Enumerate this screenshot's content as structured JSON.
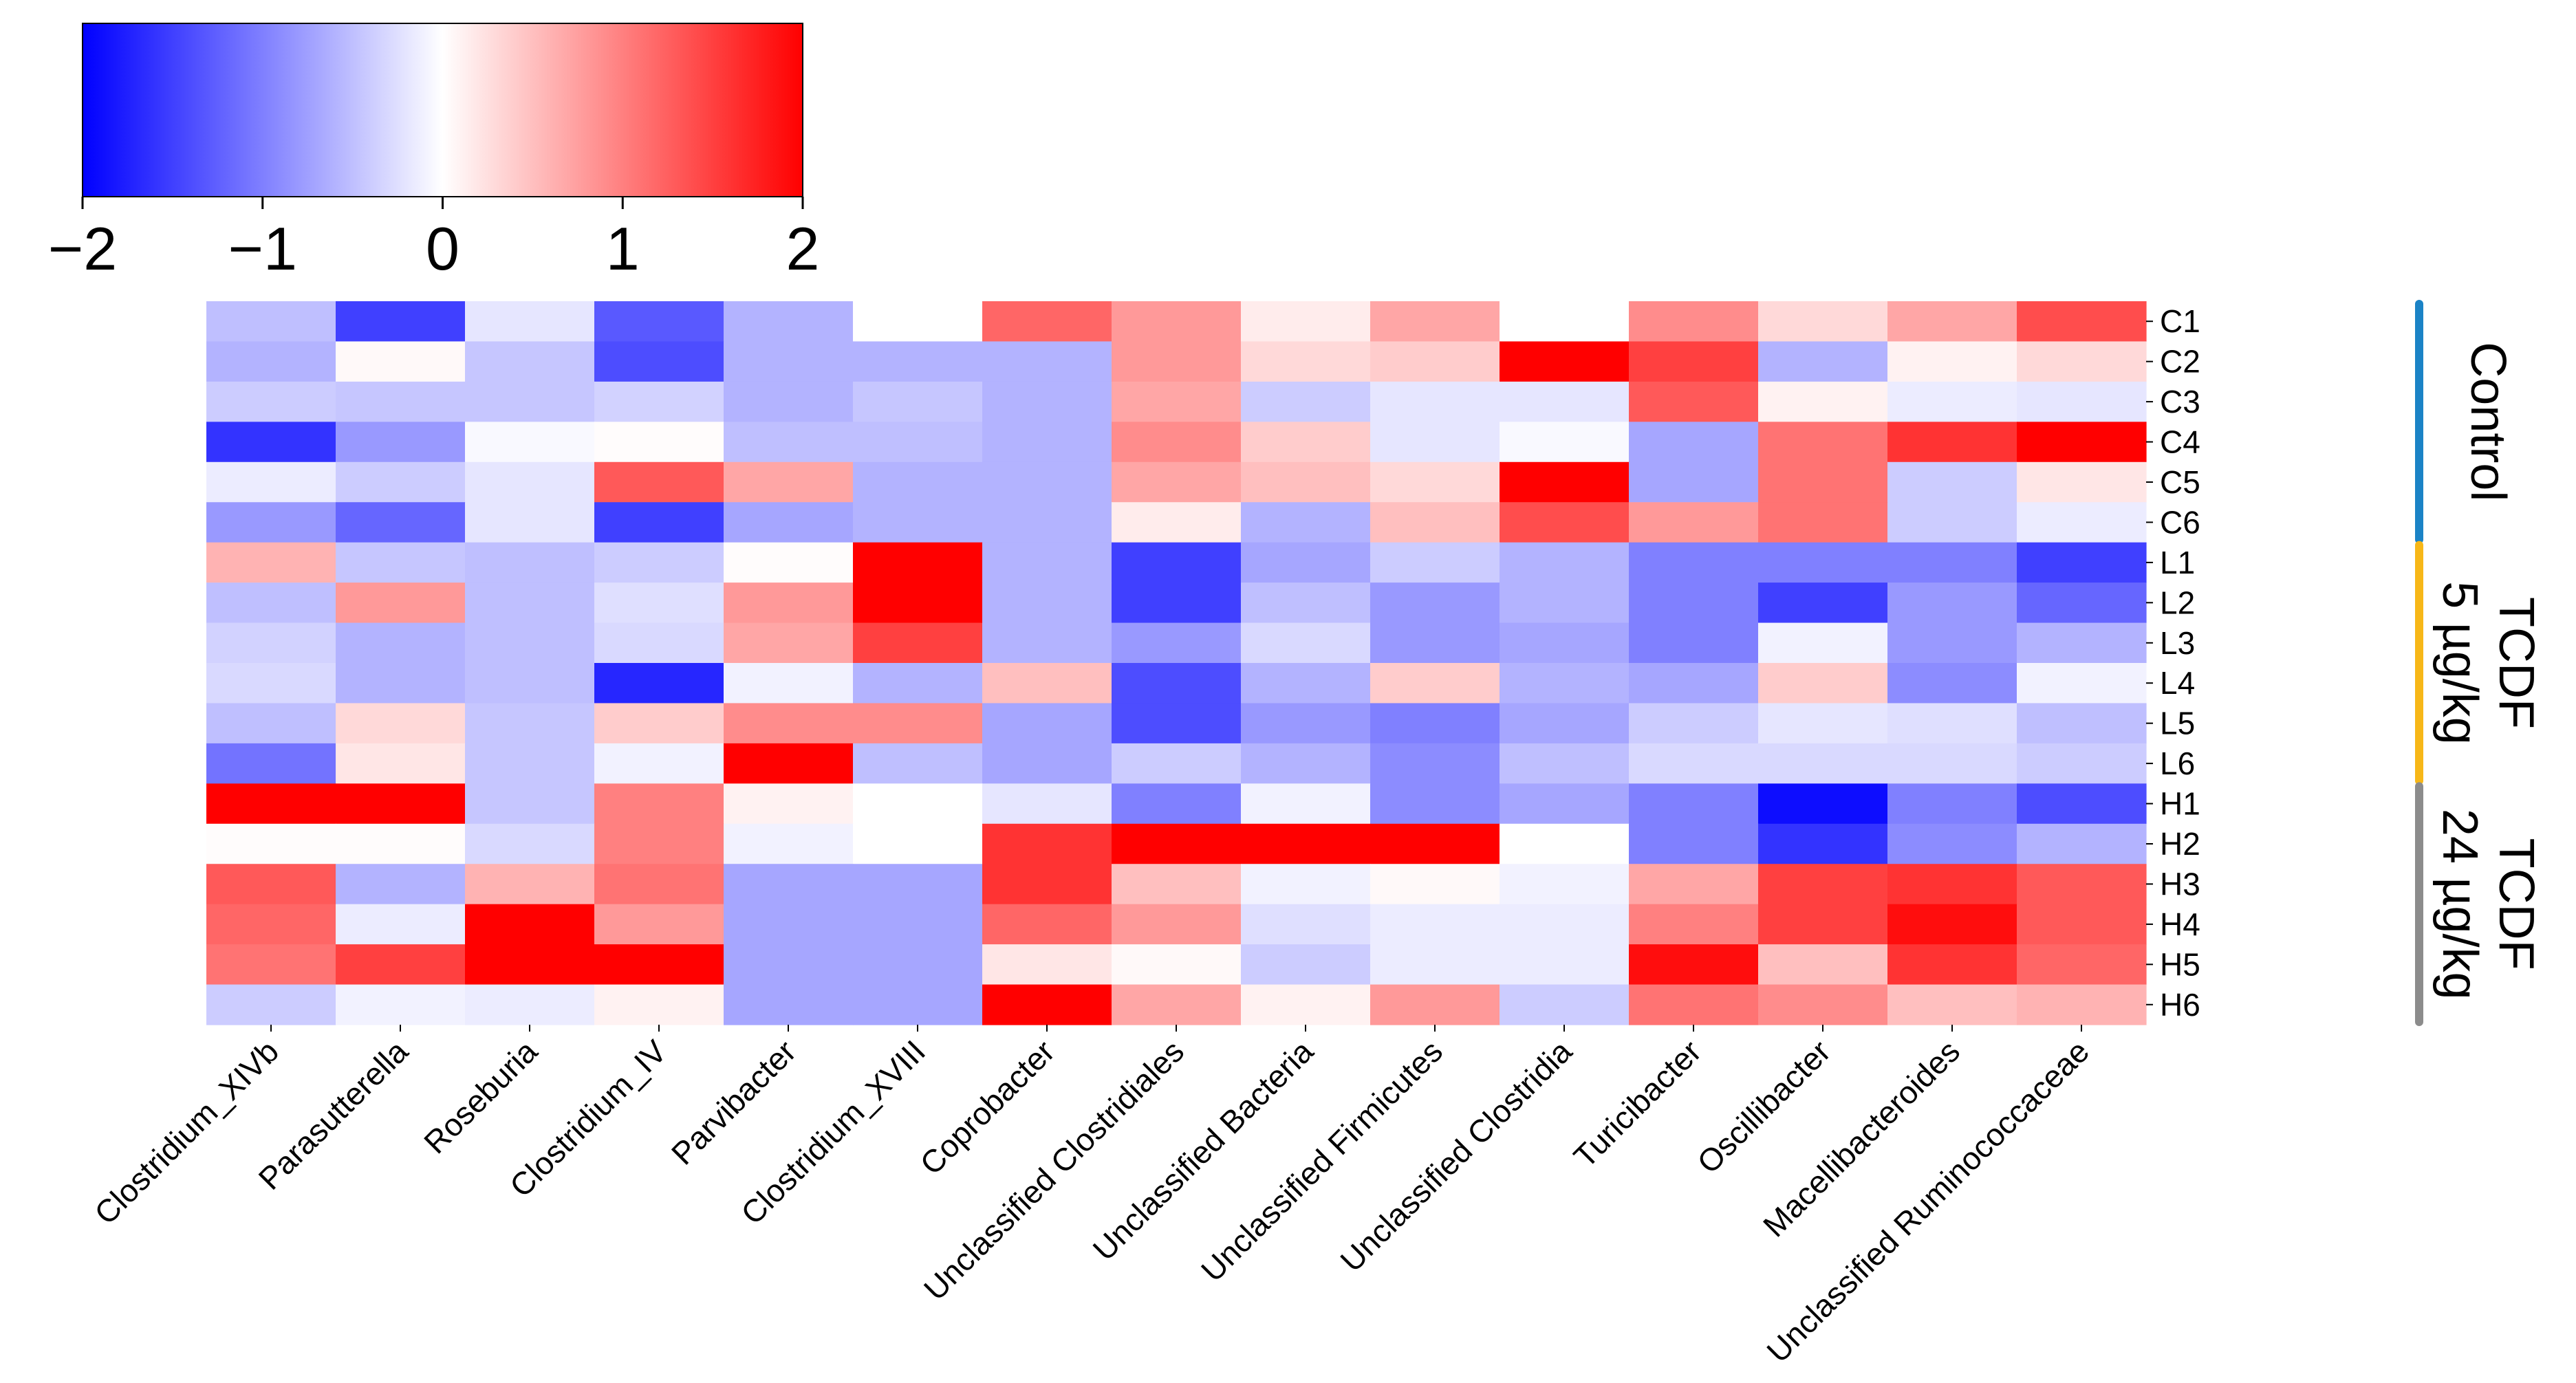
{
  "chart_data": {
    "type": "heatmap",
    "title": "",
    "xlabel": "",
    "ylabel": "",
    "columns": [
      "Clostridium_XIVb",
      "Parasutterella",
      "Roseburia",
      "Clostridium_IV",
      "Parvibacter",
      "Clostridium_XVIII",
      "Coprobacter",
      "Unclassified Clostridiales",
      "Unclassified Bacteria",
      "Unclassified Firmicutes",
      "Unclassified Clostridia",
      "Turicibacter",
      "Oscillibacter",
      "Macellibacteroides",
      "Unclassified Ruminococcaceae"
    ],
    "rows": [
      "C1",
      "C2",
      "C3",
      "C4",
      "C5",
      "C6",
      "L1",
      "L2",
      "L3",
      "L4",
      "L5",
      "L6",
      "H1",
      "H2",
      "H3",
      "H4",
      "H5",
      "H6"
    ],
    "values": [
      [
        -0.5,
        -1.5,
        -0.2,
        -1.3,
        -0.6,
        0.0,
        1.2,
        0.8,
        0.15,
        0.7,
        0.0,
        0.9,
        0.3,
        0.7,
        1.4
      ],
      [
        -0.6,
        0.05,
        -0.45,
        -1.4,
        -0.6,
        -0.6,
        -0.6,
        0.8,
        0.3,
        0.4,
        2.0,
        1.5,
        -0.6,
        0.1,
        0.3
      ],
      [
        -0.4,
        -0.45,
        -0.45,
        -0.35,
        -0.6,
        -0.45,
        -0.6,
        0.7,
        -0.4,
        -0.2,
        -0.2,
        1.3,
        0.1,
        -0.15,
        -0.2
      ],
      [
        -1.6,
        -0.8,
        -0.05,
        0.02,
        -0.5,
        -0.5,
        -0.6,
        0.9,
        0.4,
        -0.2,
        -0.05,
        -0.7,
        1.1,
        1.6,
        2.0
      ],
      [
        -0.15,
        -0.4,
        -0.2,
        1.3,
        0.7,
        -0.6,
        -0.6,
        0.7,
        0.5,
        0.3,
        2.0,
        -0.7,
        1.1,
        -0.4,
        0.2
      ],
      [
        -0.8,
        -1.2,
        -0.2,
        -1.5,
        -0.7,
        -0.6,
        -0.6,
        0.15,
        -0.6,
        0.5,
        1.4,
        0.8,
        1.1,
        -0.4,
        -0.15
      ],
      [
        0.6,
        -0.45,
        -0.5,
        -0.4,
        0.02,
        2.0,
        -0.6,
        -1.5,
        -0.7,
        -0.4,
        -0.6,
        -1.0,
        -1.0,
        -1.0,
        -1.5
      ],
      [
        -0.5,
        0.8,
        -0.5,
        -0.25,
        0.8,
        2.0,
        -0.6,
        -1.5,
        -0.5,
        -0.8,
        -0.6,
        -1.0,
        -1.5,
        -0.8,
        -1.2
      ],
      [
        -0.35,
        -0.6,
        -0.5,
        -0.3,
        0.7,
        1.5,
        -0.6,
        -0.8,
        -0.3,
        -0.8,
        -0.7,
        -1.0,
        -0.1,
        -0.8,
        -0.6
      ],
      [
        -0.3,
        -0.6,
        -0.5,
        -1.7,
        -0.1,
        -0.6,
        0.5,
        -1.4,
        -0.6,
        0.4,
        -0.6,
        -0.7,
        0.4,
        -0.9,
        -0.1
      ],
      [
        -0.5,
        0.3,
        -0.45,
        0.4,
        0.9,
        0.9,
        -0.7,
        -1.4,
        -0.8,
        -1.0,
        -0.7,
        -0.4,
        -0.2,
        -0.25,
        -0.5
      ],
      [
        -1.1,
        0.2,
        -0.45,
        -0.1,
        2.0,
        -0.5,
        -0.7,
        -0.4,
        -0.6,
        -0.9,
        -0.5,
        -0.3,
        -0.3,
        -0.3,
        -0.4
      ],
      [
        2.0,
        2.0,
        -0.45,
        1.0,
        0.1,
        0.0,
        -0.2,
        -1.0,
        -0.1,
        -0.9,
        -0.7,
        -1.0,
        -1.9,
        -1.0,
        -1.4
      ],
      [
        0.02,
        0.02,
        -0.3,
        1.0,
        -0.1,
        0.0,
        1.6,
        2.0,
        2.0,
        2.0,
        0.0,
        -1.0,
        -1.6,
        -0.9,
        -0.6
      ],
      [
        1.3,
        -0.6,
        0.6,
        1.1,
        -0.7,
        -0.7,
        1.6,
        0.5,
        -0.1,
        0.05,
        -0.1,
        0.7,
        1.5,
        1.6,
        1.3
      ],
      [
        1.2,
        -0.15,
        2.0,
        0.8,
        -0.7,
        -0.7,
        1.2,
        0.8,
        -0.25,
        -0.15,
        -0.15,
        1.0,
        1.5,
        1.9,
        1.3
      ],
      [
        1.1,
        1.5,
        2.0,
        2.0,
        -0.7,
        -0.7,
        0.2,
        0.05,
        -0.4,
        -0.15,
        -0.15,
        1.9,
        0.5,
        1.6,
        1.2
      ],
      [
        -0.4,
        -0.1,
        -0.15,
        0.1,
        -0.7,
        -0.7,
        2.0,
        0.7,
        0.1,
        0.8,
        -0.4,
        1.1,
        0.9,
        0.5,
        0.6
      ]
    ],
    "colorbar": {
      "min": -2,
      "max": 2,
      "ticks": [
        -2,
        -1,
        0,
        1,
        2
      ],
      "tick_labels": [
        "−2",
        "−1",
        "0",
        "1",
        "2"
      ],
      "colors": [
        "#0000ff",
        "#ffffff",
        "#ff0000"
      ]
    },
    "groups": [
      {
        "lines": [
          "Control"
        ],
        "rows": [
          "C1",
          "C2",
          "C3",
          "C4",
          "C5",
          "C6"
        ],
        "color": "#1b83c6"
      },
      {
        "lines": [
          "5 µg/kg",
          "TCDF"
        ],
        "rows": [
          "L1",
          "L2",
          "L3",
          "L4",
          "L5",
          "L6"
        ],
        "color": "#f7b718"
      },
      {
        "lines": [
          "24 µg/kg",
          "TCDF"
        ],
        "rows": [
          "H1",
          "H2",
          "H3",
          "H4",
          "H5",
          "H6"
        ],
        "color": "#8c8c8c"
      }
    ]
  }
}
